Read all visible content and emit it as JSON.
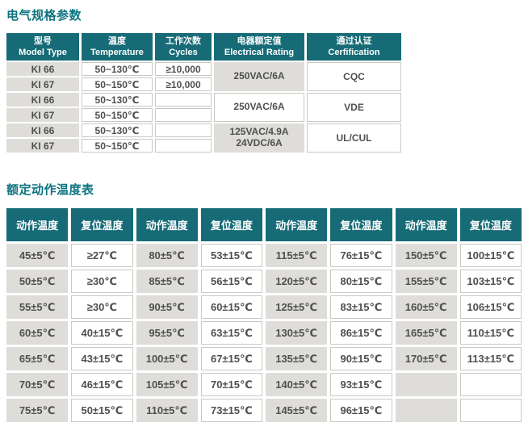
{
  "colors": {
    "teal_header": "#166b77",
    "title_teal": "#0d7380",
    "gray_cell": "#deddda",
    "cell_border": "#c8c8c5",
    "body_text": "#4f4f4f"
  },
  "section1": {
    "title": "电气规格参数",
    "headers": [
      {
        "zh": "型号",
        "en": "Model Type"
      },
      {
        "zh": "温度",
        "en": "Temperature"
      },
      {
        "zh": "工作次数",
        "en": "Cycles"
      },
      {
        "zh": "电器额定值",
        "en": "Electrical Rating"
      },
      {
        "zh": "通过认证",
        "en": "Cerfification"
      }
    ],
    "rows": [
      {
        "model": "KI 66",
        "temp": "50~130℃",
        "cycles": "≥10,000"
      },
      {
        "model": "KI 67",
        "temp": "50~150℃",
        "cycles": "≥10,000"
      },
      {
        "model": "KI 66",
        "temp": "50~130℃",
        "cycles": ""
      },
      {
        "model": "KI 67",
        "temp": "50~150℃",
        "cycles": ""
      },
      {
        "model": "KI 66",
        "temp": "50~130℃",
        "cycles": ""
      },
      {
        "model": "KI 67",
        "temp": "50~150℃",
        "cycles": ""
      }
    ],
    "merged": [
      {
        "rating": "250VAC/6A",
        "rating_bg": "gray",
        "cert": "CQC"
      },
      {
        "rating": "250VAC/6A",
        "rating_bg": "white",
        "cert": "VDE"
      },
      {
        "rating": "125VAC/4.9A\n24VDC/6A",
        "rating_bg": "gray",
        "cert": "UL/CUL"
      }
    ]
  },
  "section2": {
    "title": "额定动作温度表",
    "headers": [
      "动作温度",
      "复位温度",
      "动作温度",
      "复位温度",
      "动作温度",
      "复位温度",
      "动作温度",
      "复位温度"
    ],
    "rows": [
      [
        "45±5℃",
        "≥27℃",
        "80±5℃",
        "53±15℃",
        "115±5℃",
        "76±15℃",
        "150±5℃",
        "100±15℃"
      ],
      [
        "50±5℃",
        "≥30℃",
        "85±5℃",
        "56±15℃",
        "120±5℃",
        "80±15℃",
        "155±5℃",
        "103±15℃"
      ],
      [
        "55±5℃",
        "≥30℃",
        "90±5℃",
        "60±15℃",
        "125±5℃",
        "83±15℃",
        "160±5℃",
        "106±15℃"
      ],
      [
        "60±5℃",
        "40±15℃",
        "95±5℃",
        "63±15℃",
        "130±5℃",
        "86±15℃",
        "165±5℃",
        "110±15℃"
      ],
      [
        "65±5℃",
        "43±15℃",
        "100±5℃",
        "67±15℃",
        "135±5℃",
        "90±15℃",
        "170±5℃",
        "113±15℃"
      ],
      [
        "70±5℃",
        "46±15℃",
        "105±5℃",
        "70±15℃",
        "140±5℃",
        "93±15℃",
        "",
        ""
      ],
      [
        "75±5℃",
        "50±15℃",
        "110±5℃",
        "73±15℃",
        "145±5℃",
        "96±15℃",
        "",
        ""
      ]
    ]
  }
}
